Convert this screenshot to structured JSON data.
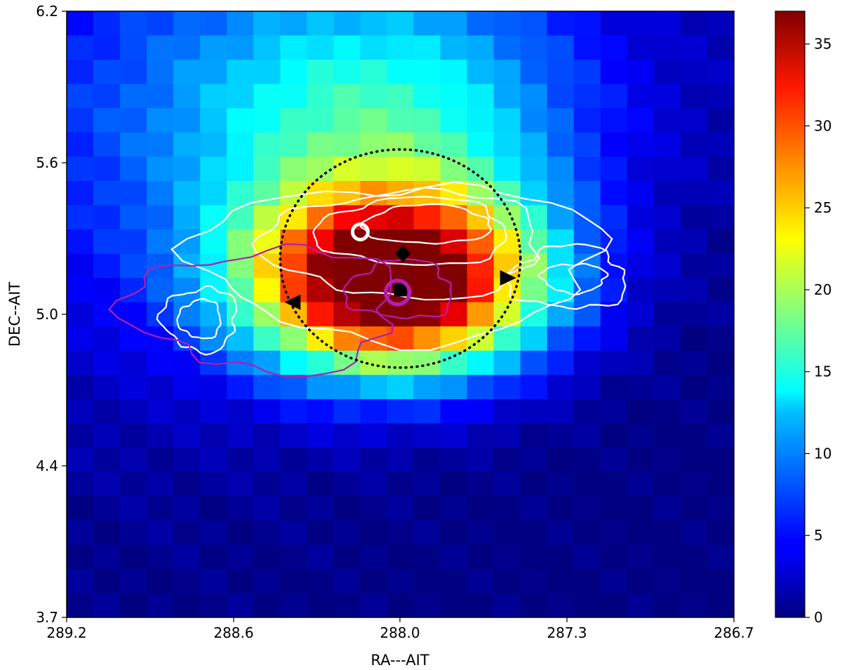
{
  "chart_data": {
    "type": "heatmap",
    "title": "",
    "xlabel": "RA---AIT",
    "ylabel": "DEC--AIT",
    "xlim": [
      289.2,
      286.7
    ],
    "ylim": [
      3.7,
      6.2
    ],
    "x_ticks": [
      "289.2",
      "288.6",
      "288.0",
      "287.3",
      "286.7"
    ],
    "y_ticks": [
      "6.2",
      "5.6",
      "5.0",
      "4.4",
      "3.7"
    ],
    "grid": false,
    "colormap": "jet",
    "colorbar": {
      "min": 0,
      "max": 37,
      "ticks": [
        "0",
        "5",
        "10",
        "15",
        "20",
        "25",
        "30",
        "35"
      ]
    },
    "peak_center": {
      "ra": 287.97,
      "dec": 5.08
    },
    "overlays": [
      {
        "type": "circle",
        "style": "dotted",
        "color": "#000000",
        "ra": 287.95,
        "dec": 5.18,
        "radius_deg": 0.45
      },
      {
        "type": "marker",
        "shape": "diamond",
        "color": "#000000",
        "ra": 287.94,
        "dec": 5.2
      },
      {
        "type": "marker",
        "shape": "square",
        "color": "#000000",
        "ra": 287.95,
        "dec": 5.05
      },
      {
        "type": "marker",
        "shape": "triangle-left",
        "color": "#000000",
        "ra": 288.35,
        "dec": 5.0
      },
      {
        "type": "marker",
        "shape": "triangle-right",
        "color": "#000000",
        "ra": 287.55,
        "dec": 5.1
      },
      {
        "type": "marker",
        "shape": "ring",
        "color": "#ffffff",
        "ra": 288.1,
        "dec": 5.29
      },
      {
        "type": "marker",
        "shape": "ring",
        "color": "#b01fb0",
        "ra": 287.96,
        "dec": 5.04
      }
    ],
    "contours": [
      {
        "name": "white",
        "color": "#ffffff"
      },
      {
        "name": "magenta",
        "color": "#b01fb0"
      }
    ]
  }
}
